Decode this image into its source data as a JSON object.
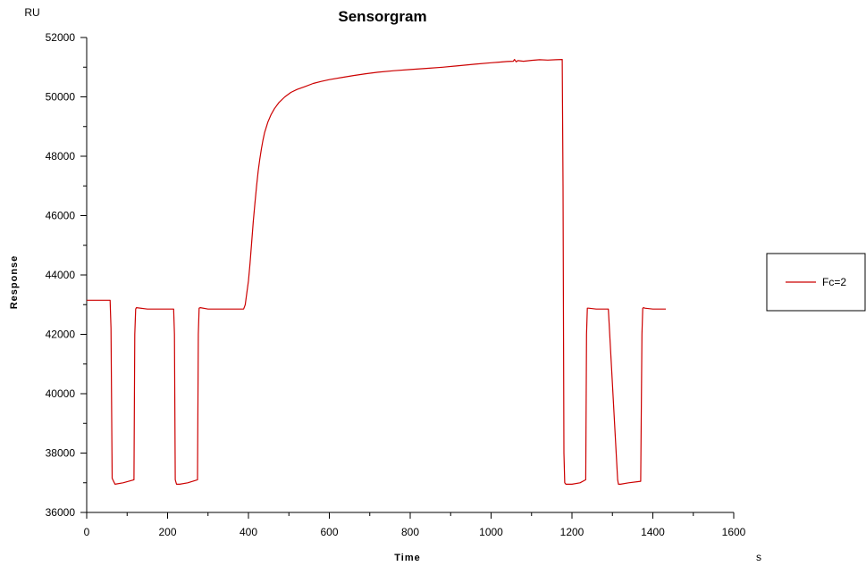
{
  "chart_data": {
    "type": "line",
    "title": "Sensorgram",
    "xlabel": "Time",
    "ylabel": "Response",
    "x_unit": "s",
    "y_unit": "RU",
    "xlim": [
      0,
      1600
    ],
    "ylim": [
      36000,
      52000
    ],
    "x_ticks": [
      0,
      200,
      400,
      600,
      800,
      1000,
      1200,
      1400,
      1600
    ],
    "y_ticks": [
      36000,
      38000,
      40000,
      42000,
      44000,
      46000,
      48000,
      50000,
      52000
    ],
    "grid": false,
    "legend_position": "right",
    "series": [
      {
        "name": "Fc=2",
        "color": "#cc0000",
        "x": [
          0,
          58,
          60,
          63,
          70,
          90,
          117,
          119,
          121,
          123,
          150,
          215,
          217,
          219,
          222,
          230,
          250,
          274,
          276,
          278,
          281,
          300,
          330,
          360,
          388,
          392,
          396,
          400,
          404,
          408,
          412,
          416,
          420,
          424,
          428,
          432,
          436,
          440,
          448,
          456,
          464,
          475,
          490,
          505,
          520,
          540,
          560,
          580,
          600,
          630,
          660,
          690,
          720,
          760,
          800,
          840,
          880,
          920,
          960,
          1000,
          1020,
          1040,
          1055,
          1058,
          1062,
          1066,
          1080,
          1100,
          1120,
          1140,
          1160,
          1176,
          1178,
          1180,
          1182,
          1185,
          1200,
          1220,
          1234,
          1236,
          1238,
          1241,
          1260,
          1290,
          1313,
          1315,
          1317,
          1320,
          1340,
          1370,
          1373,
          1375,
          1377,
          1380,
          1400,
          1420,
          1432
        ],
        "y": [
          43150,
          43150,
          42200,
          37150,
          36950,
          37000,
          37100,
          42000,
          42850,
          42900,
          42850,
          42850,
          42000,
          37100,
          36950,
          36950,
          37000,
          37100,
          42000,
          42880,
          42900,
          42850,
          42850,
          42850,
          42850,
          43000,
          43400,
          43800,
          44400,
          45100,
          45800,
          46400,
          47000,
          47500,
          47900,
          48250,
          48550,
          48800,
          49150,
          49400,
          49600,
          49800,
          50000,
          50150,
          50250,
          50350,
          50450,
          50520,
          50580,
          50650,
          50720,
          50780,
          50830,
          50880,
          50920,
          50960,
          51000,
          51050,
          51100,
          51150,
          51170,
          51190,
          51200,
          51260,
          51180,
          51220,
          51200,
          51230,
          51250,
          51240,
          51250,
          51260,
          47000,
          38000,
          37000,
          36950,
          36950,
          37000,
          37100,
          42000,
          42880,
          42880,
          42850,
          42850,
          37100,
          36950,
          36950,
          36950,
          37000,
          37050,
          42000,
          42880,
          42900,
          42880,
          42850,
          42850,
          42850
        ]
      }
    ]
  }
}
